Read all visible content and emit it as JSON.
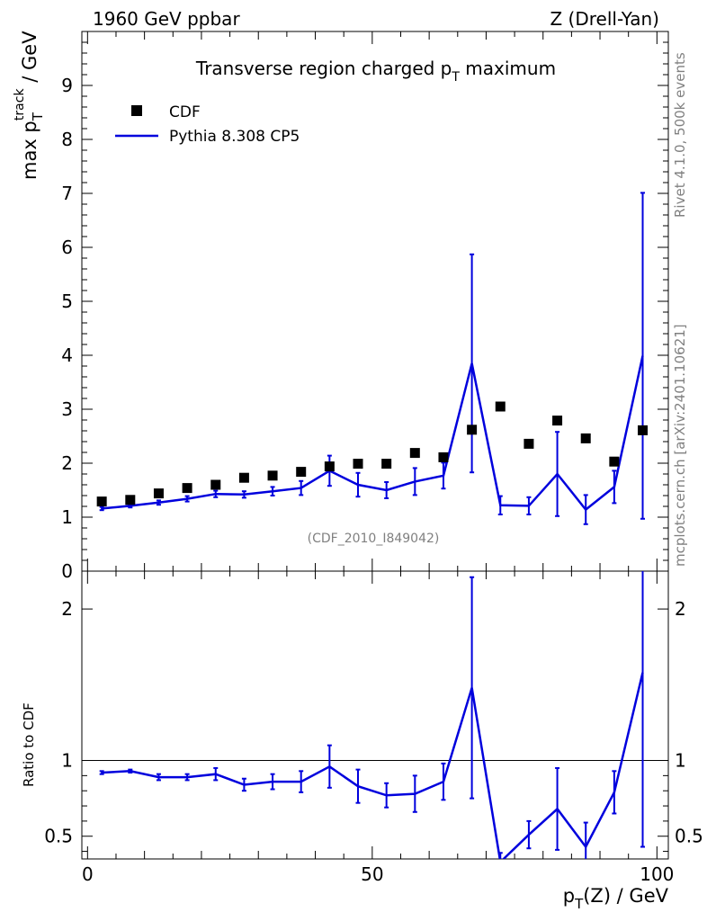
{
  "header": {
    "energy_label": "1960 GeV ppbar",
    "process_label": "Z (Drell-Yan)"
  },
  "side": {
    "rivet_label": "Rivet 4.1.0,  500k events",
    "mcplots_label": "mcplots.cern.ch [arXiv:2401.10621]"
  },
  "chart_data": {
    "type": "line",
    "title": "Transverse region charged p_T maximum",
    "analysis_id": "(CDF_2010_I849042)",
    "xlabel": "p_T(Z) / GeV",
    "ylabel": "max p_T^track / GeV",
    "ratio_ylabel": "Ratio to CDF",
    "xlim": [
      -1,
      102
    ],
    "ylim": [
      0,
      10
    ],
    "ratio_ylim": [
      0.35,
      2.25
    ],
    "x_ticks": [
      0,
      50,
      100
    ],
    "y_ticks": [
      0,
      1,
      2,
      3,
      4,
      5,
      6,
      7,
      8,
      9
    ],
    "ratio_ticks": [
      0.5,
      1,
      2
    ],
    "legend": [
      {
        "name": "CDF",
        "marker": "square",
        "color": "#000000"
      },
      {
        "name": "Pythia 8.308 CP5",
        "marker": "line",
        "color": "#0000dd"
      }
    ],
    "series": [
      {
        "name": "CDF",
        "x": [
          2.5,
          7.5,
          12.5,
          17.5,
          22.5,
          27.5,
          32.5,
          37.5,
          42.5,
          47.5,
          52.5,
          57.5,
          62.5,
          67.5,
          72.5,
          77.5,
          82.5,
          87.5,
          92.5,
          97.5
        ],
        "values": [
          1.29,
          1.32,
          1.44,
          1.54,
          1.6,
          1.73,
          1.77,
          1.84,
          1.94,
          1.99,
          1.99,
          2.19,
          2.11,
          2.62,
          3.05,
          2.36,
          2.79,
          2.46,
          2.03,
          2.61
        ]
      },
      {
        "name": "Pythia 8.308 CP5",
        "x": [
          2.5,
          7.5,
          12.5,
          17.5,
          22.5,
          27.5,
          32.5,
          37.5,
          42.5,
          47.5,
          52.5,
          57.5,
          62.5,
          67.5,
          72.5,
          77.5,
          82.5,
          87.5,
          92.5,
          97.5
        ],
        "values": [
          1.16,
          1.21,
          1.27,
          1.34,
          1.43,
          1.42,
          1.48,
          1.54,
          1.86,
          1.6,
          1.5,
          1.66,
          1.77,
          3.85,
          1.22,
          1.21,
          1.8,
          1.14,
          1.56,
          3.99
        ],
        "errors": [
          0.03,
          0.03,
          0.04,
          0.05,
          0.06,
          0.06,
          0.08,
          0.13,
          0.28,
          0.22,
          0.15,
          0.25,
          0.24,
          2.02,
          0.17,
          0.16,
          0.78,
          0.27,
          0.3,
          3.02
        ]
      }
    ],
    "ratio": {
      "reference": 1,
      "x": [
        2.5,
        7.5,
        12.5,
        17.5,
        22.5,
        27.5,
        32.5,
        37.5,
        42.5,
        47.5,
        52.5,
        57.5,
        62.5,
        67.5,
        72.5,
        77.5,
        82.5,
        87.5,
        92.5,
        97.5
      ],
      "values": [
        0.92,
        0.93,
        0.89,
        0.89,
        0.91,
        0.84,
        0.86,
        0.86,
        0.96,
        0.83,
        0.77,
        0.78,
        0.86,
        1.48,
        0.33,
        0.51,
        0.68,
        0.43,
        0.79,
        1.58
      ],
      "errors": [
        0.01,
        0.01,
        0.02,
        0.02,
        0.04,
        0.04,
        0.05,
        0.07,
        0.14,
        0.11,
        0.08,
        0.12,
        0.12,
        0.73,
        0.06,
        0.09,
        0.27,
        0.16,
        0.14,
        1.15
      ]
    }
  }
}
